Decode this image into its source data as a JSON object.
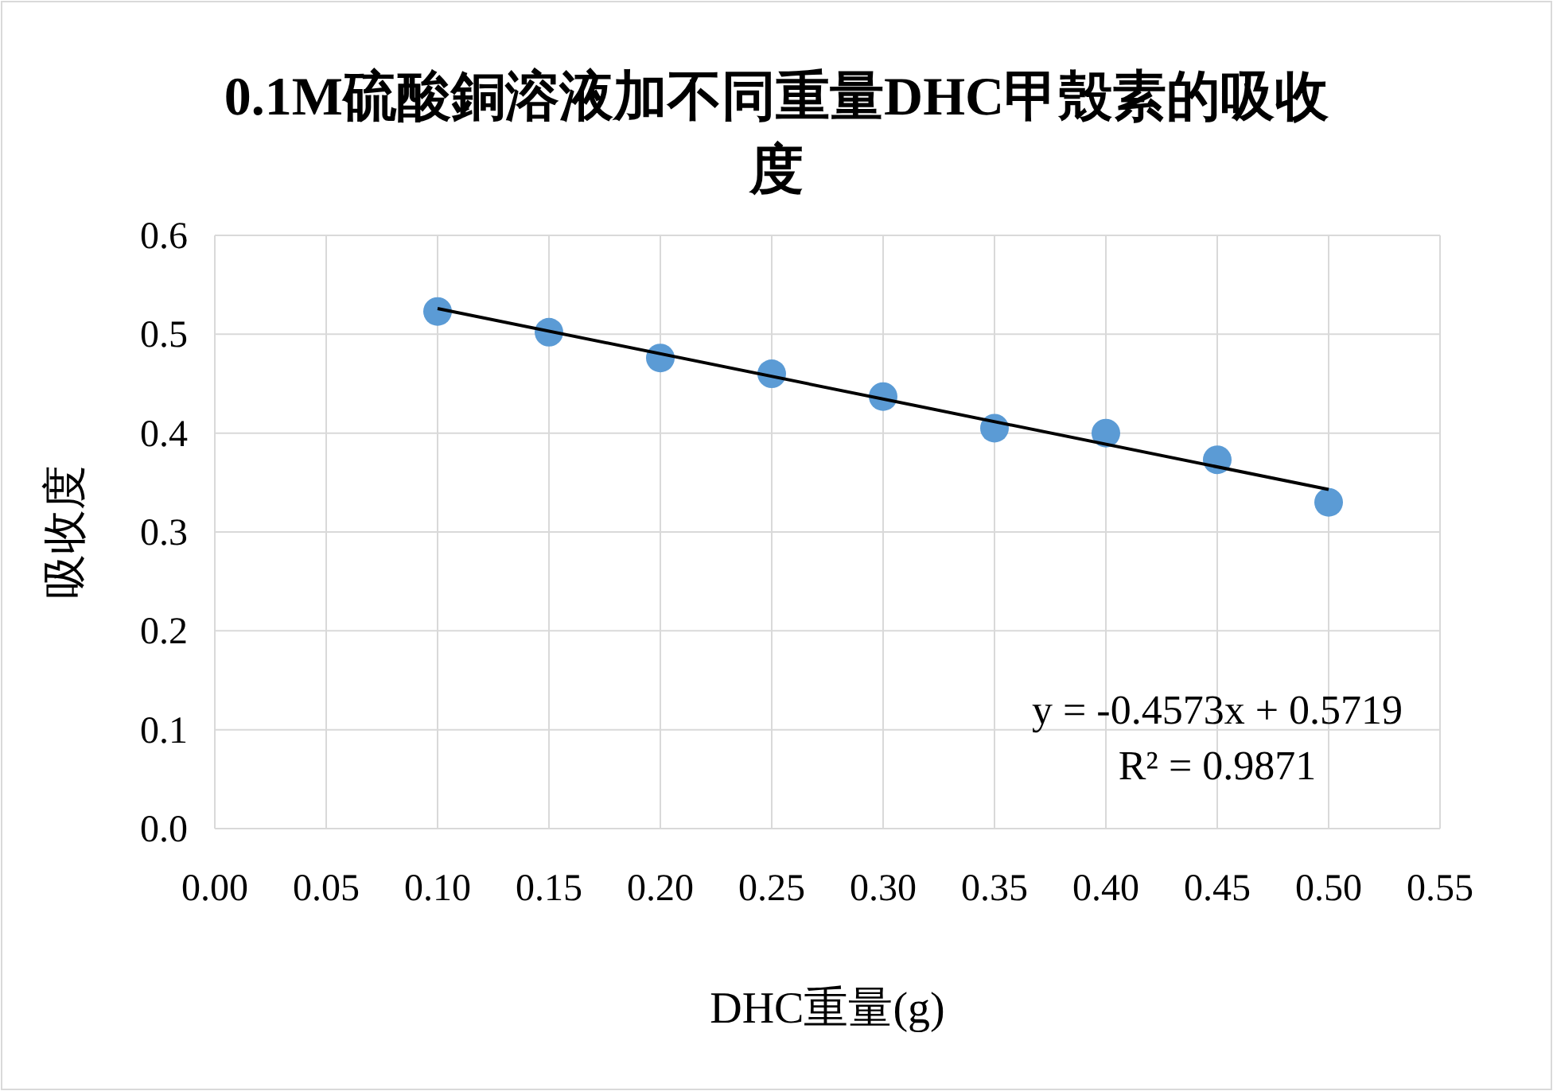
{
  "chart_data": {
    "type": "scatter",
    "title": "0.1M硫酸銅溶液加不同重量DHC甲殼素的吸收度",
    "xlabel": "DHC重量(g)",
    "ylabel": "吸收度",
    "xlim": [
      0,
      0.55
    ],
    "ylim": [
      0,
      0.6
    ],
    "xticks": [
      {
        "value": 0,
        "label": "0.00"
      },
      {
        "value": 0.05,
        "label": "0.05"
      },
      {
        "value": 0.1,
        "label": "0.10"
      },
      {
        "value": 0.15,
        "label": "0.15"
      },
      {
        "value": 0.2,
        "label": "0.20"
      },
      {
        "value": 0.25,
        "label": "0.25"
      },
      {
        "value": 0.3,
        "label": "0.30"
      },
      {
        "value": 0.35,
        "label": "0.35"
      },
      {
        "value": 0.4,
        "label": "0.40"
      },
      {
        "value": 0.45,
        "label": "0.45"
      },
      {
        "value": 0.5,
        "label": "0.50"
      },
      {
        "value": 0.55,
        "label": "0.55"
      }
    ],
    "yticks": [
      {
        "value": 0,
        "label": "0.0"
      },
      0.1,
      0.2,
      0.3,
      0.4,
      0.5,
      0.6
    ],
    "grid": true,
    "marker": "circle",
    "series": [
      {
        "color": "#5b9bd5",
        "x": [
          0.1,
          0.15,
          0.2,
          0.25,
          0.3,
          0.35,
          0.4,
          0.45,
          0.5
        ],
        "values": [
          0.523,
          0.502,
          0.476,
          0.46,
          0.437,
          0.405,
          0.4,
          0.373,
          0.33
        ]
      },
      {
        "type": "line",
        "color": "#000000",
        "marker": "none",
        "x": [
          0.1,
          0.5
        ],
        "values": [
          0.526,
          0.343
        ]
      }
    ],
    "annotations": [
      "y = -0.4573x  + 0.5719",
      "R² = 0.9871"
    ]
  }
}
